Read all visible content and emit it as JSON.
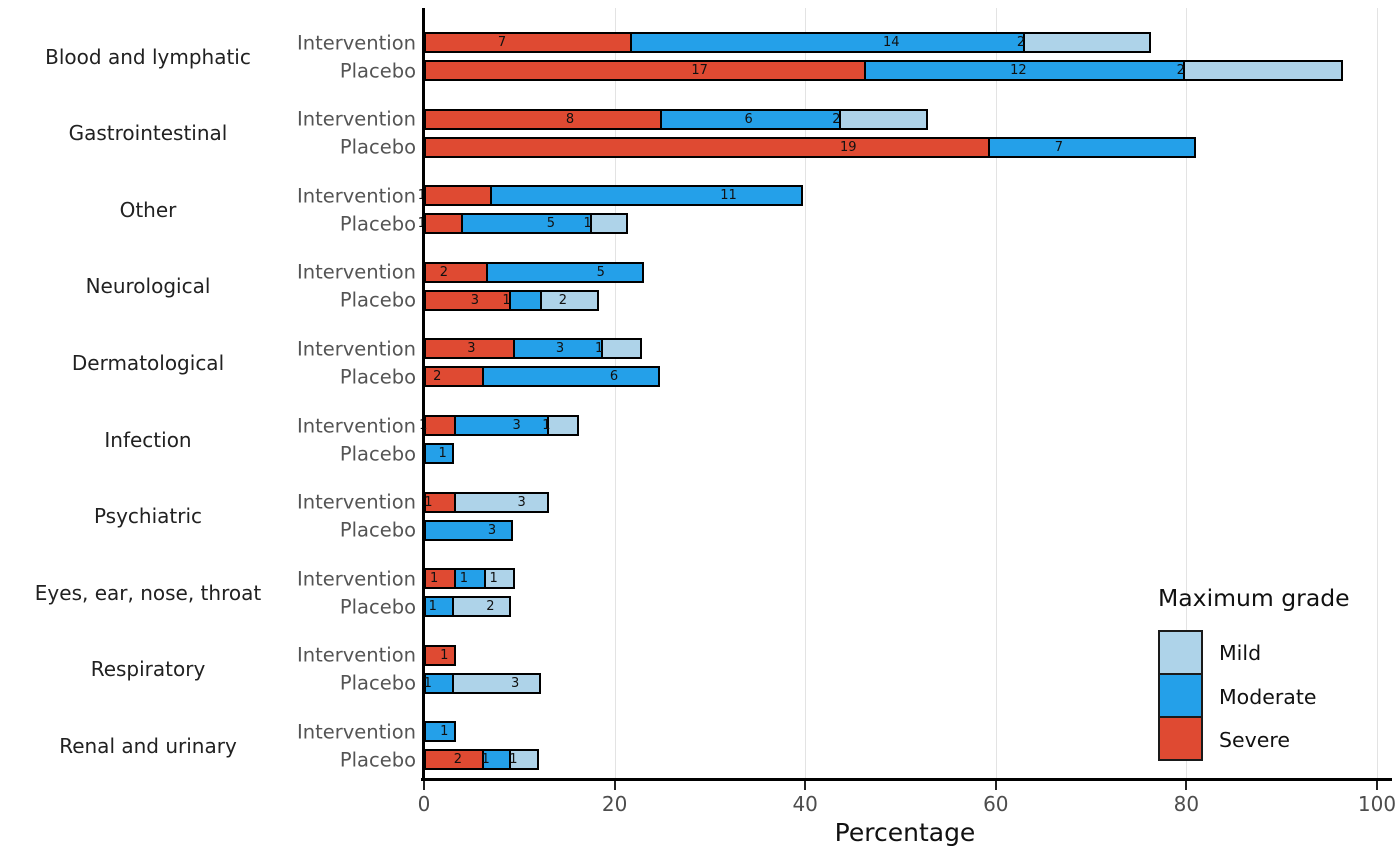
{
  "chart_data": {
    "type": "bar",
    "orientation": "horizontal",
    "stacked": true,
    "xlabel": "Percentage",
    "xlim": [
      0,
      100
    ],
    "x_ticks": [
      0,
      20,
      40,
      60,
      80,
      100
    ],
    "grid": "vertical-major-only",
    "legend": {
      "title": "Maximum grade",
      "position": "right-bottom",
      "entries": [
        {
          "label": "Mild",
          "color": "#AED3E9"
        },
        {
          "label": "Moderate",
          "color": "#24A0E9"
        },
        {
          "label": "Severe",
          "color": "#DF4A32"
        }
      ]
    },
    "stack_order_left_to_right": [
      "Severe",
      "Moderate",
      "Mild"
    ],
    "groups": [
      {
        "name": "Intervention",
        "denominator": 30
      },
      {
        "name": "Placebo",
        "denominator": 32
      }
    ],
    "value_note": "segment labels are event counts; bar lengths are counts/denominator as percentage",
    "categories": [
      {
        "label": "Blood and lymphatic",
        "rows": [
          {
            "group": "Intervention",
            "Severe": 7,
            "Moderate": 14,
            "Mild": 2
          },
          {
            "group": "Placebo",
            "Severe": 17,
            "Moderate": 12,
            "Mild": 2
          }
        ]
      },
      {
        "label": "Gastrointestinal",
        "rows": [
          {
            "group": "Intervention",
            "Severe": 8,
            "Moderate": 6,
            "Mild": 2
          },
          {
            "group": "Placebo",
            "Severe": 19,
            "Moderate": 7,
            "Mild": 0
          }
        ]
      },
      {
        "label": "Other",
        "rows": [
          {
            "group": "Intervention",
            "Severe": 1,
            "Moderate": 11,
            "Mild": 0
          },
          {
            "group": "Placebo",
            "Severe": 1,
            "Moderate": 5,
            "Mild": 1
          }
        ]
      },
      {
        "label": "Neurological",
        "rows": [
          {
            "group": "Intervention",
            "Severe": 2,
            "Moderate": 5,
            "Mild": 0
          },
          {
            "group": "Placebo",
            "Severe": 3,
            "Moderate": 1,
            "Mild": 2
          }
        ]
      },
      {
        "label": "Dermatological",
        "rows": [
          {
            "group": "Intervention",
            "Severe": 3,
            "Moderate": 3,
            "Mild": 1
          },
          {
            "group": "Placebo",
            "Severe": 2,
            "Moderate": 6,
            "Mild": 0
          }
        ]
      },
      {
        "label": "Infection",
        "rows": [
          {
            "group": "Intervention",
            "Severe": 1,
            "Moderate": 3,
            "Mild": 1
          },
          {
            "group": "Placebo",
            "Severe": 0,
            "Moderate": 1,
            "Mild": 0
          }
        ]
      },
      {
        "label": "Psychiatric",
        "rows": [
          {
            "group": "Intervention",
            "Severe": 1,
            "Moderate": 0,
            "Mild": 3
          },
          {
            "group": "Placebo",
            "Severe": 0,
            "Moderate": 3,
            "Mild": 0
          }
        ]
      },
      {
        "label": "Eyes, ear, nose, throat",
        "rows": [
          {
            "group": "Intervention",
            "Severe": 1,
            "Moderate": 1,
            "Mild": 1
          },
          {
            "group": "Placebo",
            "Severe": 0,
            "Moderate": 1,
            "Mild": 2
          }
        ]
      },
      {
        "label": "Respiratory",
        "rows": [
          {
            "group": "Intervention",
            "Severe": 1,
            "Moderate": 0,
            "Mild": 0
          },
          {
            "group": "Placebo",
            "Severe": 0,
            "Moderate": 1,
            "Mild": 3
          }
        ]
      },
      {
        "label": "Renal and urinary",
        "rows": [
          {
            "group": "Intervention",
            "Severe": 0,
            "Moderate": 1,
            "Mild": 0
          },
          {
            "group": "Placebo",
            "Severe": 2,
            "Moderate": 1,
            "Mild": 1
          }
        ]
      }
    ]
  },
  "colors": {
    "severe": "#DF4A32",
    "moderate": "#24A0E9",
    "mild": "#AED3E9",
    "gridline": "#E3E3E3",
    "axis": "#000000",
    "tick_text": "#4D4D4D",
    "group_label_text": "#545454"
  }
}
